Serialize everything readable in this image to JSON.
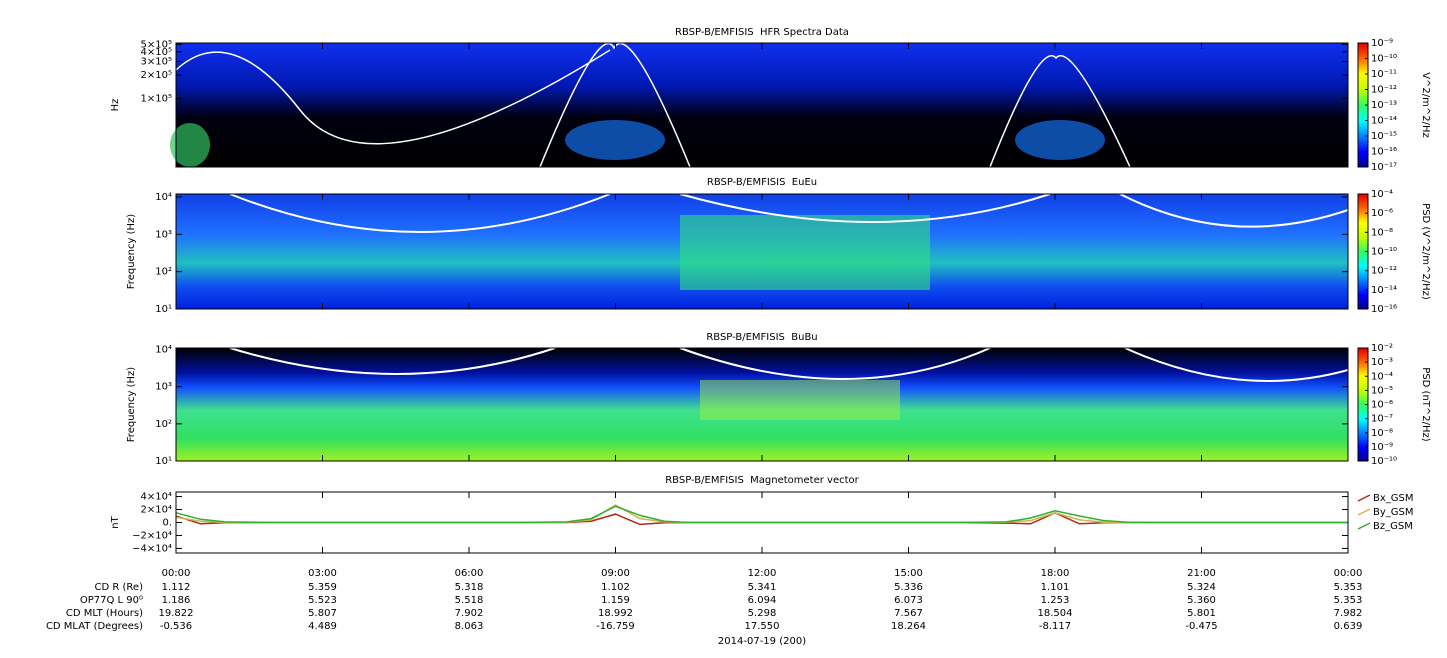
{
  "chart_data": [
    {
      "type": "spectrogram",
      "title": "RBSP-B/EMFISIS  HFR Spectra Data",
      "y_label": "Hz",
      "log_y": true,
      "xlim": [
        0,
        24
      ],
      "ylim": [
        13000,
        520000
      ],
      "yticks": [
        {
          "value": 500000,
          "label": "5×10⁵"
        },
        {
          "value": 400000,
          "label": "4×10⁵"
        },
        {
          "value": 300000,
          "label": "3×10⁵"
        },
        {
          "value": 200000,
          "label": "2×10⁵"
        },
        {
          "value": 100000,
          "label": "1×10⁵"
        }
      ],
      "colorbar_label": "V^2/m^2/Hz",
      "clim": [
        1e-17,
        1e-09
      ],
      "cticks": [
        {
          "value": 1e-09,
          "label": "10⁻⁹"
        },
        {
          "value": 1e-10,
          "label": "10⁻¹⁰"
        },
        {
          "value": 1e-11,
          "label": "10⁻¹¹"
        },
        {
          "value": 1e-12,
          "label": "10⁻¹²"
        },
        {
          "value": 1e-13,
          "label": "10⁻¹³"
        },
        {
          "value": 1e-14,
          "label": "10⁻¹⁴"
        },
        {
          "value": 1e-15,
          "label": "10⁻¹⁵"
        },
        {
          "value": 1e-16,
          "label": "10⁻¹⁶"
        },
        {
          "value": 1e-17,
          "label": "10⁻¹⁷"
        }
      ]
    },
    {
      "type": "spectrogram",
      "title": "RBSP-B/EMFISIS  EuEu",
      "y_label": "Frequency (Hz)",
      "log_y": true,
      "xlim": [
        0,
        24
      ],
      "ylim": [
        10,
        12000
      ],
      "yticks": [
        {
          "value": 10000,
          "label": "10⁴"
        },
        {
          "value": 1000,
          "label": "10³"
        },
        {
          "value": 100,
          "label": "10²"
        },
        {
          "value": 10,
          "label": "10¹"
        }
      ],
      "colorbar_label": "PSD (V^2/m^2/Hz)",
      "clim": [
        1e-16,
        0.0001
      ],
      "cticks": [
        {
          "value": 0.0001,
          "label": "10⁻⁴"
        },
        {
          "value": 1e-06,
          "label": "10⁻⁶"
        },
        {
          "value": 1e-08,
          "label": "10⁻⁸"
        },
        {
          "value": 1e-10,
          "label": "10⁻¹⁰"
        },
        {
          "value": 1e-12,
          "label": "10⁻¹²"
        },
        {
          "value": 1e-14,
          "label": "10⁻¹⁴"
        },
        {
          "value": 1e-16,
          "label": "10⁻¹⁶"
        }
      ]
    },
    {
      "type": "spectrogram",
      "title": "RBSP-B/EMFISIS  BuBu",
      "y_label": "Frequency (Hz)",
      "log_y": true,
      "xlim": [
        0,
        24
      ],
      "ylim": [
        10,
        11000
      ],
      "yticks": [
        {
          "value": 10000,
          "label": "10⁴"
        },
        {
          "value": 1000,
          "label": "10³"
        },
        {
          "value": 100,
          "label": "10²"
        },
        {
          "value": 10,
          "label": "10¹"
        }
      ],
      "colorbar_label": "PSD (nT^2/Hz)",
      "clim": [
        1e-10,
        0.01
      ],
      "cticks": [
        {
          "value": 0.01,
          "label": "10⁻²"
        },
        {
          "value": 0.001,
          "label": "10⁻³"
        },
        {
          "value": 0.0001,
          "label": "10⁻⁴"
        },
        {
          "value": 1e-05,
          "label": "10⁻⁵"
        },
        {
          "value": 1e-06,
          "label": "10⁻⁶"
        },
        {
          "value": 1e-07,
          "label": "10⁻⁷"
        },
        {
          "value": 1e-08,
          "label": "10⁻⁸"
        },
        {
          "value": 1e-09,
          "label": "10⁻⁹"
        },
        {
          "value": 1e-10,
          "label": "10⁻¹⁰"
        }
      ]
    },
    {
      "type": "line",
      "title": "RBSP-B/EMFISIS  Magnetometer vector",
      "y_label": "nT",
      "xlim": [
        0,
        24
      ],
      "ylim": [
        -47000,
        47000
      ],
      "xticks": [
        {
          "value": 0,
          "label": "00:00"
        },
        {
          "value": 3,
          "label": "03:00"
        },
        {
          "value": 6,
          "label": "06:00"
        },
        {
          "value": 9,
          "label": "09:00"
        },
        {
          "value": 12,
          "label": "12:00"
        },
        {
          "value": 15,
          "label": "15:00"
        },
        {
          "value": 18,
          "label": "18:00"
        },
        {
          "value": 21,
          "label": "21:00"
        },
        {
          "value": 24,
          "label": "00:00"
        }
      ],
      "yticks": [
        {
          "value": 40000,
          "label": "4×10⁴"
        },
        {
          "value": 20000,
          "label": "2×10⁴"
        },
        {
          "value": 0,
          "label": "0."
        },
        {
          "value": -20000,
          "label": "−2×10⁴"
        },
        {
          "value": -40000,
          "label": "−4×10⁴"
        }
      ],
      "x": [
        0,
        0.5,
        1,
        2,
        3,
        4,
        5,
        6,
        7,
        8,
        8.5,
        9,
        9.5,
        10,
        10.5,
        11,
        12,
        13,
        14,
        15,
        16,
        17,
        17.5,
        18,
        18.5,
        19,
        19.5,
        20,
        21,
        22,
        23,
        24
      ],
      "series": [
        {
          "name": "Bx_GSM",
          "color": "#b0281e",
          "values": [
            10000,
            -2000,
            -500,
            0,
            0,
            0,
            0,
            0,
            0,
            0,
            2000,
            13000,
            -3000,
            -500,
            0,
            0,
            0,
            0,
            0,
            0,
            0,
            -1000,
            -2000,
            15000,
            -2000,
            -500,
            0,
            0,
            0,
            0,
            0,
            0
          ]
        },
        {
          "name": "By_GSM",
          "color": "#d2b450",
          "values": [
            8000,
            2000,
            0,
            0,
            0,
            0,
            0,
            0,
            0,
            500,
            4000,
            27000,
            6000,
            1000,
            0,
            0,
            0,
            0,
            0,
            0,
            0,
            500,
            3000,
            15000,
            4000,
            500,
            0,
            0,
            0,
            0,
            0,
            0
          ]
        },
        {
          "name": "Bz_GSM",
          "color": "#30b030",
          "values": [
            15000,
            5000,
            1000,
            0,
            0,
            0,
            0,
            0,
            0,
            1000,
            6000,
            25000,
            11000,
            2000,
            0,
            0,
            0,
            0,
            0,
            0,
            0,
            1000,
            7000,
            18000,
            10000,
            3000,
            500,
            0,
            0,
            0,
            0,
            0
          ]
        }
      ]
    }
  ],
  "ephemeris": {
    "rows": [
      {
        "label": "CD R (Re)",
        "values": [
          "1.112",
          "5.359",
          "5.318",
          "1.102",
          "5.341",
          "5.336",
          "1.101",
          "5.324",
          "5.353"
        ]
      },
      {
        "label": "OP77Q L 90⁰",
        "values": [
          "1.186",
          "5.523",
          "5.518",
          "1.159",
          "6.094",
          "6.073",
          "1.253",
          "5.360",
          "5.353"
        ]
      },
      {
        "label": "CD MLT (Hours)",
        "values": [
          "19.822",
          "5.807",
          "7.902",
          "18.992",
          "5.298",
          "7.567",
          "18.504",
          "5.801",
          "7.982"
        ]
      },
      {
        "label": "CD MLAT (Degrees)",
        "values": [
          "-0.536",
          "4.489",
          "8.063",
          "-16.759",
          "17.550",
          "18.264",
          "-8.117",
          "-0.475",
          "0.639"
        ]
      }
    ],
    "date": "2014-07-19 (200)"
  }
}
